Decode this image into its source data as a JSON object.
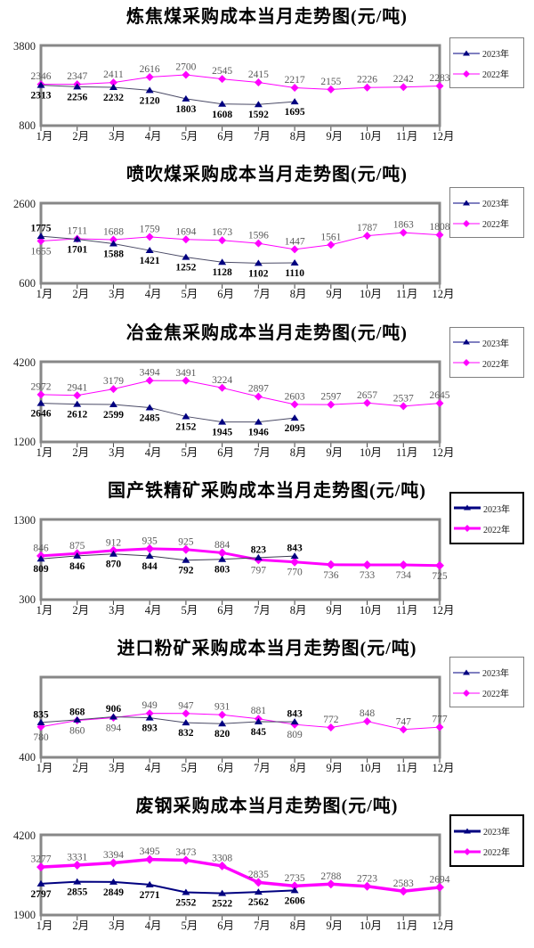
{
  "chart_data": [
    {
      "type": "line",
      "title": "炼焦煤采购成本当月走势图(元/吨)",
      "categories": [
        "1月",
        "2月",
        "3月",
        "4月",
        "5月",
        "6月",
        "7月",
        "8月",
        "9月",
        "10月",
        "11月",
        "12月"
      ],
      "ylim": [
        800,
        3800
      ],
      "y_axis": {
        "top_label": "3800",
        "bottom_label": "800"
      },
      "legend_position": "right",
      "legend_border": "thin",
      "tail_label_side": "above",
      "series": [
        {
          "name": "2023年",
          "marker": "triangle",
          "color": "#000080",
          "line_color": "#4a4a66",
          "line_width": 1,
          "label_color": "#000000",
          "label_bold": true,
          "values": [
            2313,
            2256,
            2232,
            2120,
            1803,
            1608,
            1592,
            1695
          ]
        },
        {
          "name": "2022年",
          "marker": "diamond",
          "color": "#FF00FF",
          "line_color": "#FF00FF",
          "line_width": 1,
          "label_color": "#595959",
          "label_bold": false,
          "values": [
            2346,
            2347,
            2411,
            2616,
            2700,
            2545,
            2415,
            2217,
            2155,
            2226,
            2242,
            2283
          ]
        }
      ]
    },
    {
      "type": "line",
      "title": "喷吹煤采购成本当月走势图(元/吨)",
      "categories": [
        "1月",
        "2月",
        "3月",
        "4月",
        "5月",
        "6月",
        "7月",
        "8月",
        "9月",
        "10月",
        "11月",
        "12月"
      ],
      "ylim": [
        600,
        2600
      ],
      "y_axis": {
        "top_label": "2600",
        "bottom_label": "600"
      },
      "legend_position": "right",
      "legend_border": "thin",
      "tail_label_side": "above",
      "series": [
        {
          "name": "2023年",
          "marker": "triangle",
          "color": "#000080",
          "line_color": "#4a4a66",
          "line_width": 1,
          "label_color": "#000000",
          "label_bold": true,
          "values": [
            1775,
            1701,
            1588,
            1421,
            1252,
            1128,
            1102,
            1110
          ]
        },
        {
          "name": "2022年",
          "marker": "diamond",
          "color": "#FF00FF",
          "line_color": "#FF00FF",
          "line_width": 1,
          "label_color": "#595959",
          "label_bold": false,
          "values": [
            1655,
            1711,
            1688,
            1759,
            1694,
            1673,
            1596,
            1447,
            1561,
            1787,
            1863,
            1808
          ]
        }
      ]
    },
    {
      "type": "line",
      "title": "冶金焦采购成本当月走势图(元/吨)",
      "categories": [
        "1月",
        "2月",
        "3月",
        "4月",
        "5月",
        "6月",
        "7月",
        "8月",
        "9月",
        "10月",
        "11月",
        "12月"
      ],
      "ylim": [
        1200,
        4200
      ],
      "y_axis": {
        "top_label": "4200",
        "bottom_label": "1200"
      },
      "legend_position": "right",
      "legend_border": "thin",
      "tail_label_side": "above",
      "series": [
        {
          "name": "2023年",
          "marker": "triangle",
          "color": "#000080",
          "line_color": "#4a4a66",
          "line_width": 1,
          "label_color": "#000000",
          "label_bold": true,
          "values": [
            2646,
            2612,
            2599,
            2485,
            2152,
            1945,
            1946,
            2095
          ]
        },
        {
          "name": "2022年",
          "marker": "diamond",
          "color": "#FF00FF",
          "line_color": "#FF00FF",
          "line_width": 1,
          "label_color": "#595959",
          "label_bold": false,
          "values": [
            2972,
            2941,
            3179,
            3494,
            3491,
            3224,
            2897,
            2603,
            2597,
            2657,
            2537,
            2645
          ]
        }
      ]
    },
    {
      "type": "line",
      "title": "国产铁精矿采购成本当月走势图(元/吨)",
      "categories": [
        "1月",
        "2月",
        "3月",
        "4月",
        "5月",
        "6月",
        "7月",
        "8月",
        "9月",
        "10月",
        "11月",
        "12月"
      ],
      "ylim": [
        300,
        1300
      ],
      "y_axis": {
        "top_label": "1300",
        "bottom_label": "300"
      },
      "legend_position": "right",
      "legend_border": "thick",
      "tail_label_side": "below",
      "series": [
        {
          "name": "2023年",
          "marker": "triangle",
          "color": "#000080",
          "line_color": "#3a3a50",
          "line_width": 1,
          "label_color": "#000000",
          "label_bold": true,
          "values": [
            809,
            846,
            870,
            844,
            792,
            803,
            823,
            843
          ]
        },
        {
          "name": "2022年",
          "marker": "diamond",
          "color": "#FF00FF",
          "line_color": "#FF00FF",
          "line_width": 3,
          "label_color": "#595959",
          "label_bold": false,
          "values": [
            846,
            875,
            912,
            935,
            925,
            884,
            797,
            770,
            736,
            733,
            734,
            725
          ]
        }
      ]
    },
    {
      "type": "line",
      "title": "进口粉矿采购成本当月走势图(元/吨)",
      "categories": [
        "1月",
        "2月",
        "3月",
        "4月",
        "5月",
        "6月",
        "7月",
        "8月",
        "9月",
        "10月",
        "11月",
        "12月"
      ],
      "ylim": [
        400,
        1400
      ],
      "y_axis": {
        "top_label": "",
        "bottom_label": "400"
      },
      "legend_position": "right",
      "legend_border": "thin",
      "tail_label_side": "above",
      "series": [
        {
          "name": "2023年",
          "marker": "triangle",
          "color": "#000080",
          "line_color": "#4a4a66",
          "line_width": 1,
          "label_color": "#000000",
          "label_bold": true,
          "values": [
            835,
            868,
            906,
            893,
            832,
            820,
            845,
            843
          ]
        },
        {
          "name": "2022年",
          "marker": "diamond",
          "color": "#FF00FF",
          "line_color": "#FF00FF",
          "line_width": 1,
          "label_color": "#595959",
          "label_bold": false,
          "values": [
            780,
            860,
            894,
            949,
            947,
            931,
            881,
            809,
            772,
            848,
            747,
            777
          ]
        }
      ]
    },
    {
      "type": "line",
      "title": "废钢采购成本当月走势图(元/吨)",
      "categories": [
        "1月",
        "2月",
        "3月",
        "4月",
        "5月",
        "6月",
        "7月",
        "8月",
        "9月",
        "10月",
        "11月",
        "12月"
      ],
      "ylim": [
        1900,
        4200
      ],
      "y_axis": {
        "top_label": "4200",
        "bottom_label": "1900"
      },
      "legend_position": "right",
      "legend_border": "thick",
      "tail_label_side": "above",
      "series": [
        {
          "name": "2023年",
          "marker": "triangle",
          "color": "#000080",
          "line_color": "#000080",
          "line_width": 2,
          "label_color": "#000000",
          "label_bold": true,
          "values": [
            2797,
            2855,
            2849,
            2771,
            2552,
            2522,
            2562,
            2606
          ]
        },
        {
          "name": "2022年",
          "marker": "diamond",
          "color": "#FF00FF",
          "line_color": "#FF00FF",
          "line_width": 3.5,
          "label_color": "#595959",
          "label_bold": false,
          "values": [
            3277,
            3331,
            3394,
            3495,
            3473,
            3308,
            2835,
            2735,
            2788,
            2723,
            2583,
            2694
          ]
        }
      ]
    }
  ]
}
